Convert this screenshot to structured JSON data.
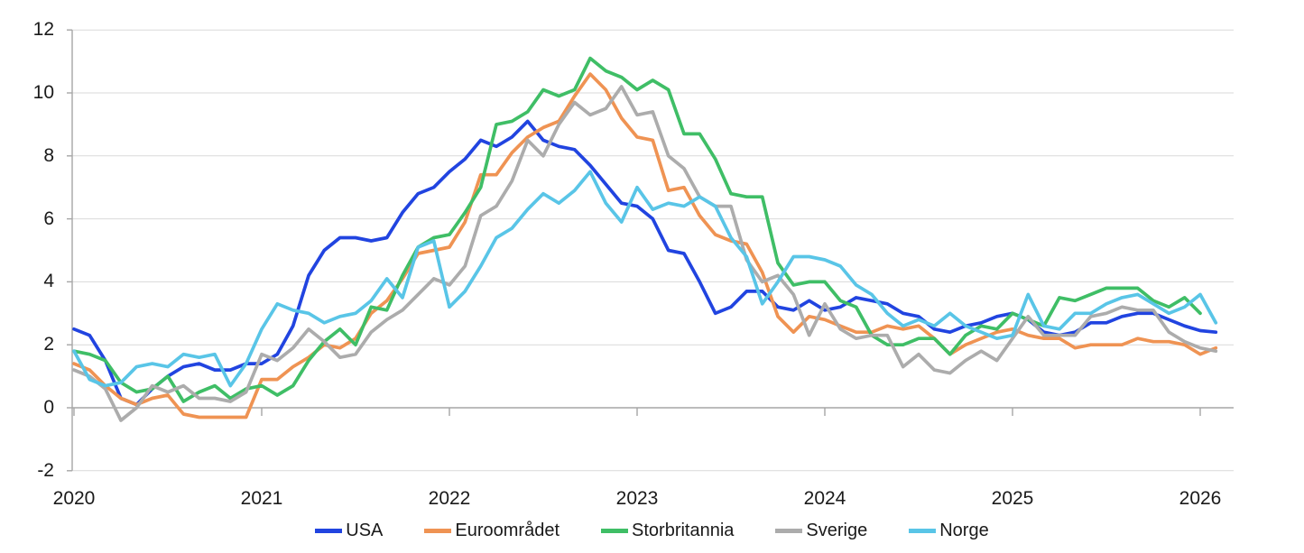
{
  "chart_data": {
    "type": "line",
    "title": "",
    "frequency": "monthly",
    "x_start": "2020-01",
    "x_end": "2026-02",
    "x_tick_labels": [
      "2020",
      "2021",
      "2022",
      "2023",
      "2024",
      "2025",
      "2026"
    ],
    "y_tick_labels": [
      "12",
      "10",
      "8",
      "6",
      "4",
      "2",
      "0",
      "-2"
    ],
    "y_tick_values": [
      12,
      10,
      8,
      6,
      4,
      2,
      0,
      -2
    ],
    "ylim": [
      -2,
      12
    ],
    "grid": "horizontal",
    "legend_position": "bottom",
    "gridline_color": "#d9d9d9",
    "axis_color": "#a6a6a6",
    "label_color": "#1a1a1a",
    "series": [
      {
        "name": "USA",
        "color": "#2144e0",
        "values": [
          2.5,
          2.3,
          1.5,
          0.3,
          0.1,
          0.6,
          1.0,
          1.3,
          1.4,
          1.2,
          1.2,
          1.4,
          1.4,
          1.7,
          2.6,
          4.2,
          5.0,
          5.4,
          5.4,
          5.3,
          5.4,
          6.2,
          6.8,
          7.0,
          7.5,
          7.9,
          8.5,
          8.3,
          8.6,
          9.1,
          8.5,
          8.3,
          8.2,
          7.7,
          7.1,
          6.5,
          6.4,
          6.0,
          5.0,
          4.9,
          4.0,
          3.0,
          3.2,
          3.7,
          3.7,
          3.2,
          3.1,
          3.4,
          3.1,
          3.2,
          3.5,
          3.4,
          3.3,
          3.0,
          2.9,
          2.5,
          2.4,
          2.6,
          2.7,
          2.9,
          3.0,
          2.8,
          2.4,
          2.3,
          2.4,
          2.7,
          2.7,
          2.9,
          3.0,
          3.0,
          2.8,
          2.6,
          2.45,
          2.4
        ]
      },
      {
        "name": "Euroområdet",
        "color": "#ef9353",
        "values": [
          1.4,
          1.2,
          0.7,
          0.3,
          0.1,
          0.3,
          0.4,
          -0.2,
          -0.3,
          -0.3,
          -0.3,
          -0.3,
          0.9,
          0.9,
          1.3,
          1.6,
          2.0,
          1.9,
          2.2,
          3.0,
          3.4,
          4.1,
          4.9,
          5.0,
          5.1,
          5.9,
          7.4,
          7.4,
          8.1,
          8.6,
          8.9,
          9.1,
          9.9,
          10.6,
          10.1,
          9.2,
          8.6,
          8.5,
          6.9,
          7.0,
          6.1,
          5.5,
          5.3,
          5.2,
          4.3,
          2.9,
          2.4,
          2.9,
          2.8,
          2.6,
          2.4,
          2.4,
          2.6,
          2.5,
          2.6,
          2.2,
          1.7,
          2.0,
          2.2,
          2.4,
          2.5,
          2.3,
          2.2,
          2.2,
          1.9,
          2.0,
          2.0,
          2.0,
          2.2,
          2.1,
          2.1,
          2.0,
          1.7,
          1.9
        ]
      },
      {
        "name": "Storbritannia",
        "color": "#3fbe66",
        "values": [
          1.8,
          1.7,
          1.5,
          0.8,
          0.5,
          0.6,
          1.0,
          0.2,
          0.5,
          0.7,
          0.3,
          0.6,
          0.7,
          0.4,
          0.7,
          1.5,
          2.1,
          2.5,
          2.0,
          3.2,
          3.1,
          4.2,
          5.1,
          5.4,
          5.5,
          6.2,
          7.0,
          9.0,
          9.1,
          9.4,
          10.1,
          9.9,
          10.1,
          11.1,
          10.7,
          10.5,
          10.1,
          10.4,
          10.1,
          8.7,
          8.7,
          7.9,
          6.8,
          6.7,
          6.7,
          4.6,
          3.9,
          4.0,
          4.0,
          3.4,
          3.2,
          2.3,
          2.0,
          2.0,
          2.2,
          2.2,
          1.7,
          2.3,
          2.6,
          2.5,
          3.0,
          2.8,
          2.6,
          3.5,
          3.4,
          3.6,
          3.8,
          3.8,
          3.8,
          3.4,
          3.2,
          3.5,
          3.0,
          null
        ]
      },
      {
        "name": "Sverige",
        "color": "#acacac",
        "values": [
          1.2,
          1.0,
          0.6,
          -0.4,
          0.0,
          0.7,
          0.5,
          0.7,
          0.3,
          0.3,
          0.2,
          0.5,
          1.7,
          1.5,
          1.9,
          2.5,
          2.1,
          1.6,
          1.7,
          2.4,
          2.8,
          3.1,
          3.6,
          4.1,
          3.9,
          4.5,
          6.1,
          6.4,
          7.2,
          8.5,
          8.0,
          9.0,
          9.7,
          9.3,
          9.5,
          10.2,
          9.3,
          9.4,
          8.0,
          7.6,
          6.7,
          6.4,
          6.4,
          4.7,
          4.0,
          4.2,
          3.6,
          2.3,
          3.3,
          2.5,
          2.2,
          2.3,
          2.3,
          1.3,
          1.7,
          1.2,
          1.1,
          1.5,
          1.8,
          1.5,
          2.2,
          2.9,
          2.3,
          2.3,
          2.3,
          2.9,
          3.0,
          3.2,
          3.1,
          3.1,
          2.4,
          2.1,
          1.9,
          1.8
        ]
      },
      {
        "name": "Norge",
        "color": "#59c5e7",
        "values": [
          1.8,
          0.9,
          0.7,
          0.8,
          1.3,
          1.4,
          1.3,
          1.7,
          1.6,
          1.7,
          0.7,
          1.4,
          2.5,
          3.3,
          3.1,
          3.0,
          2.7,
          2.9,
          3.0,
          3.4,
          4.1,
          3.5,
          5.1,
          5.3,
          3.2,
          3.7,
          4.5,
          5.4,
          5.7,
          6.3,
          6.8,
          6.5,
          6.9,
          7.5,
          6.5,
          5.9,
          7.0,
          6.3,
          6.5,
          6.4,
          6.7,
          6.4,
          5.4,
          4.8,
          3.3,
          4.0,
          4.8,
          4.8,
          4.7,
          4.5,
          3.9,
          3.6,
          3.0,
          2.6,
          2.8,
          2.6,
          3.0,
          2.6,
          2.4,
          2.2,
          2.3,
          3.6,
          2.6,
          2.5,
          3.0,
          3.0,
          3.3,
          3.5,
          3.6,
          3.3,
          3.0,
          3.2,
          3.6,
          2.7
        ]
      }
    ]
  }
}
